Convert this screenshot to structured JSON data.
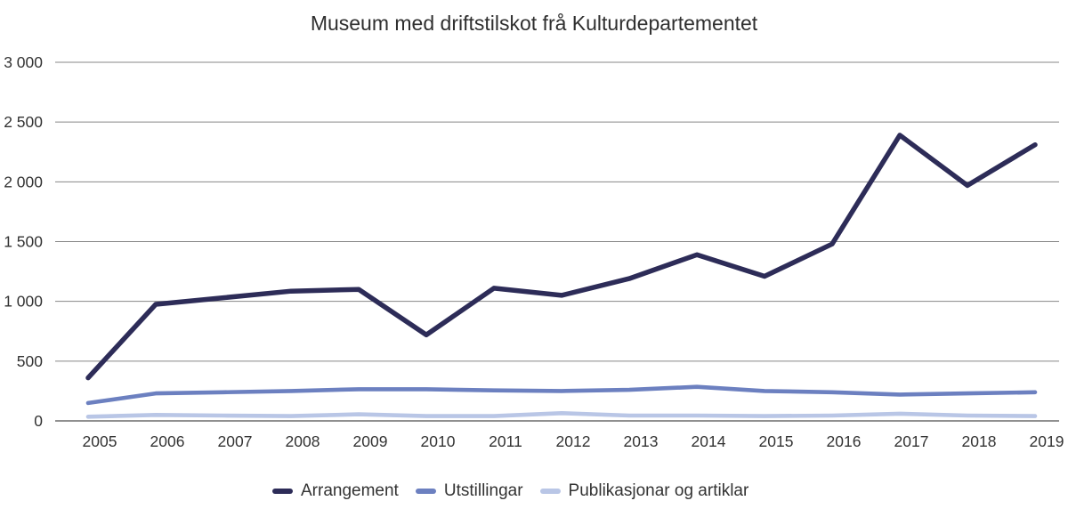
{
  "chart_data": {
    "type": "line",
    "title": "Museum med driftstilskot frå Kulturdepartementet",
    "categories": [
      "2005",
      "2006",
      "2007",
      "2008",
      "2009",
      "2010",
      "2011",
      "2012",
      "2013",
      "2014",
      "2015",
      "2016",
      "2017",
      "2018",
      "2019"
    ],
    "series": [
      {
        "name": "Arrangement",
        "color": "#2d2c58",
        "values": [
          360,
          975,
          1030,
          1085,
          1100,
          720,
          1110,
          1050,
          1190,
          1390,
          1210,
          1480,
          2390,
          1970,
          2310
        ]
      },
      {
        "name": "Utstillingar",
        "color": "#6c80c0",
        "values": [
          150,
          230,
          240,
          250,
          265,
          265,
          255,
          250,
          260,
          285,
          250,
          240,
          220,
          230,
          240
        ]
      },
      {
        "name": "Publikasjonar og artiklar",
        "color": "#b9c6e6",
        "values": [
          35,
          50,
          45,
          40,
          55,
          40,
          40,
          65,
          45,
          45,
          40,
          45,
          60,
          45,
          40
        ]
      }
    ],
    "xlabel": "",
    "ylabel": "",
    "ylim": [
      0,
      3000
    ],
    "ytick_interval": 500,
    "ytick_labels": [
      "0",
      "500",
      "1 000",
      "1 500",
      "2 000",
      "2 500",
      "3 000"
    ],
    "grid": true,
    "legend_position": "bottom"
  }
}
